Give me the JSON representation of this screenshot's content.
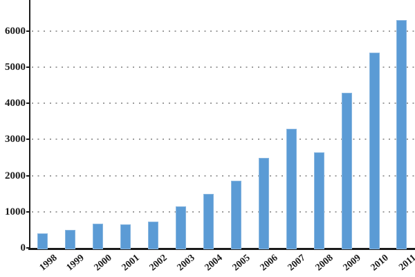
{
  "chart_data": {
    "type": "bar",
    "title": "",
    "xlabel": "",
    "ylabel": "",
    "categories": [
      "1998",
      "1999",
      "2000",
      "2001",
      "2002",
      "2003",
      "2004",
      "2005",
      "2006",
      "2007",
      "2008",
      "2009",
      "2010",
      "2011"
    ],
    "values": [
      400,
      500,
      680,
      650,
      730,
      1150,
      1500,
      1850,
      2500,
      3300,
      2650,
      4300,
      5400,
      6300
    ],
    "yticks": [
      0,
      1000,
      2000,
      3000,
      4000,
      5000,
      6000
    ],
    "ylim": [
      0,
      6860
    ],
    "grid": "horizontal-dotted",
    "legend": "none",
    "colors": {
      "bar_fill": "#5B9BD5",
      "bar_edge": "#88b6e0",
      "gridline": "#9c9c9c",
      "axis": "#1a1a1a",
      "label_text": "#1a1a1a",
      "background": "#ffffff"
    }
  }
}
